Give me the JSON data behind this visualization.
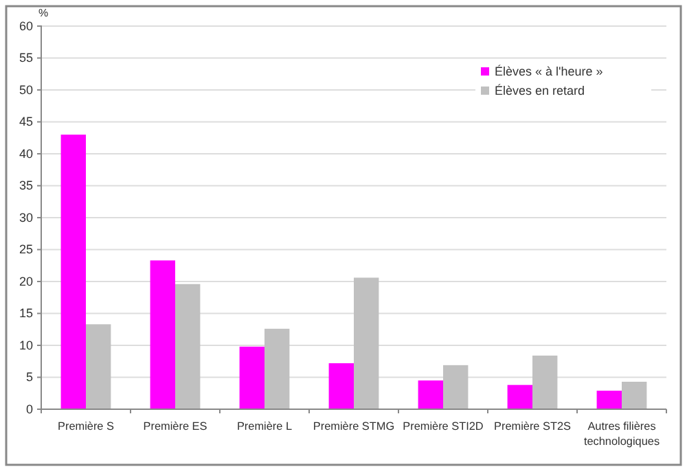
{
  "chart_data": {
    "type": "bar",
    "ylabel": "%",
    "categories": [
      "Première S",
      "Première ES",
      "Première L",
      "Première STMG",
      "Première STI2D",
      "Première ST2S",
      "Autres filières technologiques"
    ],
    "series": [
      {
        "name": "Élèves « à l'heure »",
        "color": "#ff00ff",
        "values": [
          43,
          23.3,
          9.8,
          7.2,
          4.5,
          3.8,
          2.9
        ]
      },
      {
        "name": "Élèves en retard",
        "color": "#c0c0c0",
        "values": [
          13.3,
          19.6,
          12.6,
          20.6,
          6.9,
          8.4,
          4.3
        ]
      }
    ],
    "ylim": [
      0,
      60
    ],
    "yticks": [
      0,
      5,
      10,
      15,
      20,
      25,
      30,
      35,
      40,
      45,
      50,
      55,
      60
    ],
    "grid": "y",
    "legend": "top right"
  }
}
